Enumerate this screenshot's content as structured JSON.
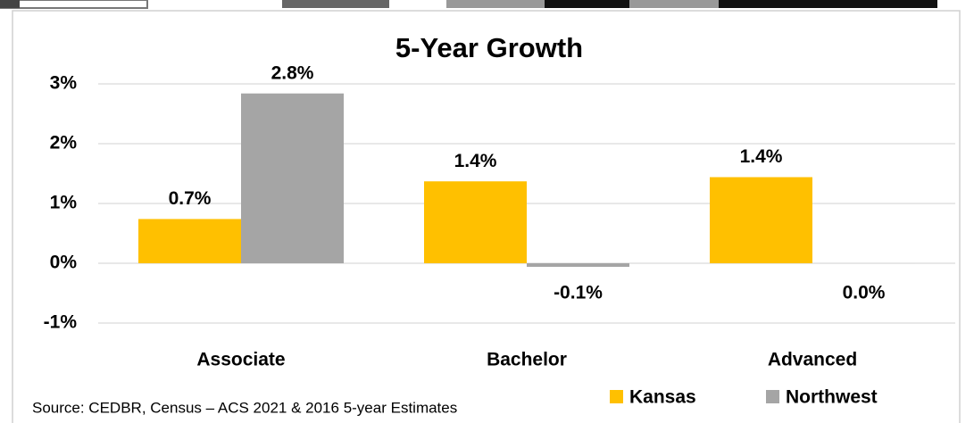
{
  "chart_data": {
    "type": "bar",
    "title": "5-Year Growth",
    "categories": [
      "Associate",
      "Bachelor",
      "Advanced"
    ],
    "series": [
      {
        "name": "Kansas",
        "color": "#ffc000",
        "values": [
          0.74,
          1.37,
          1.44
        ],
        "value_labels": [
          "0.7%",
          "1.4%",
          "1.4%"
        ]
      },
      {
        "name": "Northwest",
        "color": "#a5a5a5",
        "values": [
          2.84,
          -0.06,
          0
        ],
        "value_labels": [
          "2.8%",
          "-0.1%",
          "0.0%"
        ]
      }
    ],
    "ylim": [
      -1,
      3
    ],
    "yticks": [
      {
        "value": -1,
        "label": "-1%"
      },
      {
        "value": 0,
        "label": "0%"
      },
      {
        "value": 1,
        "label": "1%"
      },
      {
        "value": 2,
        "label": "2%"
      },
      {
        "value": 3,
        "label": "3%"
      }
    ],
    "grid": true,
    "source": "Source: CEDBR, Census – ACS 2021 & 2016 5-year Estimates"
  }
}
